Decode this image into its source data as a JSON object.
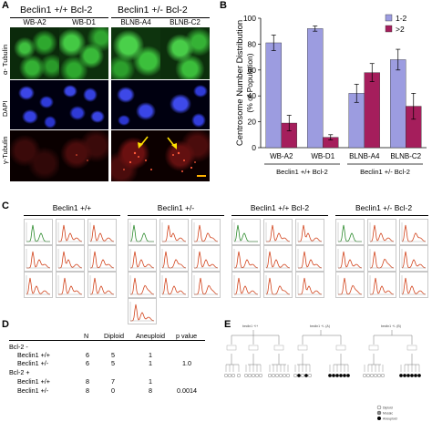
{
  "panelA": {
    "letter": "A",
    "group1": "Beclin1 +/+ Bcl-2",
    "group2": "Beclin1 +/- Bcl-2",
    "columns": [
      "WB-A2",
      "WB-D1",
      "BLNB-A4",
      "BLNB-C2"
    ],
    "rows": [
      "α- Tubulin",
      "DAPI",
      "γ-Tubulin"
    ]
  },
  "panelB": {
    "letter": "B",
    "chart_data": {
      "type": "bar",
      "categories": [
        "WB-A2",
        "WB-D1",
        "BLNB-A4",
        "BLNB-C2"
      ],
      "series": [
        {
          "name": "1-2",
          "values": [
            81,
            92,
            42,
            68
          ],
          "errors": [
            6,
            2,
            7,
            8
          ],
          "color": "#9c9ce0"
        },
        {
          "name": ">2",
          "values": [
            19,
            8,
            58,
            32
          ],
          "errors": [
            6,
            2,
            7,
            10
          ],
          "color": "#a51e5c"
        }
      ],
      "ylabel": "Centrosome Number Distribution (% of Population)",
      "ylim": [
        0,
        100
      ],
      "yticks": [
        0,
        20,
        40,
        60,
        80,
        100
      ],
      "group_labels": [
        "Beclin1 +/+ Bcl-2",
        "Beclin1 +/- Bcl-2"
      ],
      "legend_position": "top-right",
      "grid": false
    }
  },
  "panelC": {
    "letter": "C",
    "groups": [
      "Beclin1 +/+",
      "Beclin1 +/-",
      "Beclin1 +/+ Bcl-2",
      "Beclin1 +/-  Bcl-2"
    ],
    "colors": {
      "green": "#2e8b2e",
      "red": "#d2451e"
    }
  },
  "panelD": {
    "letter": "D",
    "headers": [
      "",
      "N",
      "Diploid",
      "Aneuploid",
      "p value"
    ],
    "rows": [
      [
        "Bcl-2 -",
        "",
        "",
        "",
        ""
      ],
      [
        "Beclin1 +/+",
        "6",
        "5",
        "1",
        ""
      ],
      [
        "Beclin1 +/-",
        "6",
        "5",
        "1",
        "1.0"
      ],
      [
        "Bcl-2 +",
        "",
        "",
        "",
        ""
      ],
      [
        "Beclin1 +/+",
        "8",
        "7",
        "1",
        ""
      ],
      [
        "Beclin1 +/-",
        "8",
        "0",
        "8",
        "0.0014"
      ]
    ]
  },
  "panelE": {
    "letter": "E",
    "tree_labels": [
      "beclin1 +/+",
      "beclin1 +/- (A)",
      "beclin1 +/- (B)"
    ],
    "legend": [
      "Diploid",
      "Mosaic",
      "Aneuploid"
    ]
  }
}
